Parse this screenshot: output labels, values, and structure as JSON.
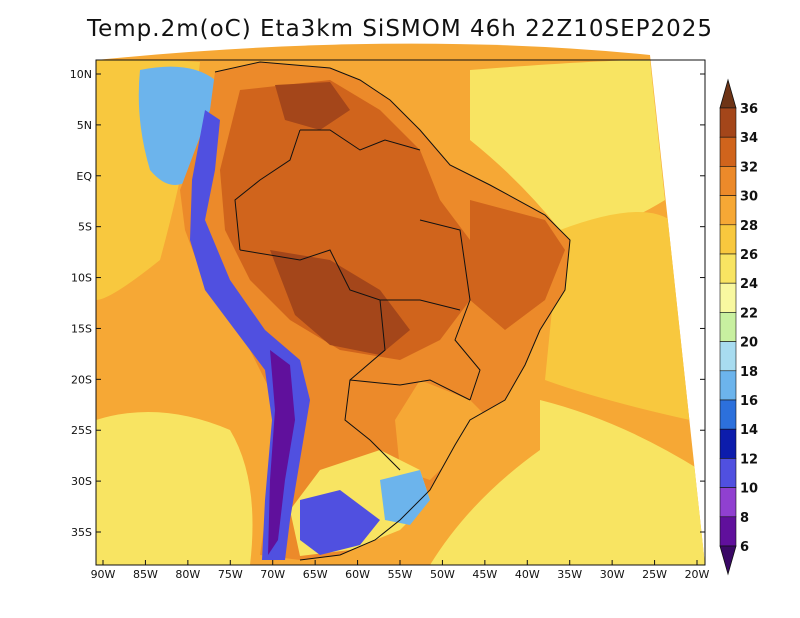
{
  "title": "Temp.2m(oC) Eta3km SiSMOM 46h 22Z10SEP2025",
  "lat_ticks": [
    {
      "label": "10N",
      "lat": 10
    },
    {
      "label": "5N",
      "lat": 5
    },
    {
      "label": "EQ",
      "lat": 0
    },
    {
      "label": "5S",
      "lat": -5
    },
    {
      "label": "10S",
      "lat": -10
    },
    {
      "label": "15S",
      "lat": -15
    },
    {
      "label": "20S",
      "lat": -20
    },
    {
      "label": "25S",
      "lat": -25
    },
    {
      "label": "30S",
      "lat": -30
    },
    {
      "label": "35S",
      "lat": -35
    }
  ],
  "lon_ticks": [
    {
      "label": "90W",
      "lon": -90
    },
    {
      "label": "85W",
      "lon": -85
    },
    {
      "label": "80W",
      "lon": -80
    },
    {
      "label": "75W",
      "lon": -75
    },
    {
      "label": "70W",
      "lon": -70
    },
    {
      "label": "65W",
      "lon": -65
    },
    {
      "label": "60W",
      "lon": -60
    },
    {
      "label": "55W",
      "lon": -55
    },
    {
      "label": "50W",
      "lon": -50
    },
    {
      "label": "45W",
      "lon": -45
    },
    {
      "label": "40W",
      "lon": -40
    },
    {
      "label": "35W",
      "lon": -35
    },
    {
      "label": "30W",
      "lon": -30
    },
    {
      "label": "25W",
      "lon": -25
    },
    {
      "label": "20W",
      "lon": -20
    }
  ],
  "colorbar": {
    "labels": [
      "36",
      "34",
      "32",
      "30",
      "28",
      "26",
      "24",
      "22",
      "20",
      "18",
      "16",
      "14",
      "12",
      "10",
      "8",
      "6"
    ],
    "colors": [
      "#6e3416",
      "#a4461a",
      "#d0641c",
      "#ec8a2a",
      "#f6a835",
      "#f8c83e",
      "#f8e462",
      "#f8f8a0",
      "#c8f0a0",
      "#a8dcf0",
      "#6cb4ec",
      "#2c70dc",
      "#0c1cac",
      "#5050e0",
      "#9040d0",
      "#60109c",
      "#3a0866"
    ]
  },
  "colors": {
    "ocean_warm": "#f6a835",
    "ocean_mild": "#f8c83e",
    "ocean_cool": "#f8e462",
    "land_hot": "#d0641c",
    "land_very_hot": "#a4461a",
    "land_warm": "#ec8a2a",
    "andes_cold": "#5050e0",
    "andes_very_cold": "#60109c",
    "south_cool": "#6cb4ec",
    "border": "#111111"
  }
}
